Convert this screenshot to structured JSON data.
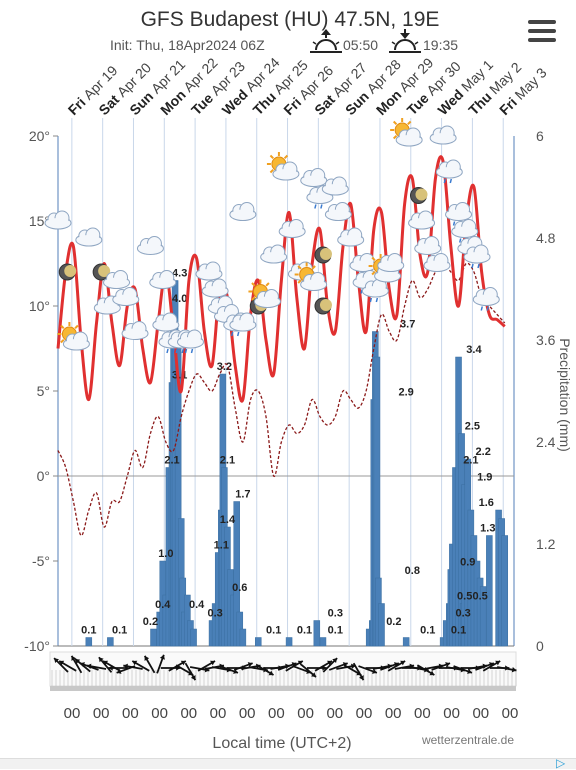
{
  "header": {
    "title": "GFS Budapest (HU) 47.5N, 19E",
    "init": "Init: Thu, 18Apr2024 06Z",
    "sunrise_time": "05:50",
    "sunset_time": "19:35",
    "sunrise_icon": "sunrise-icon",
    "sunset_icon": "sunset-icon",
    "menu_icon": "menu-icon"
  },
  "footer": {
    "xlabel": "Local time (UTC+2)",
    "credit": "wetterzentrale.de"
  },
  "chart_data": {
    "type": "line",
    "day_labels": [
      {
        "day": "Fri",
        "date": "Apr 19"
      },
      {
        "day": "Sat",
        "date": "Apr 20"
      },
      {
        "day": "Sun",
        "date": "Apr 21"
      },
      {
        "day": "Mon",
        "date": "Apr 22"
      },
      {
        "day": "Tue",
        "date": "Apr 23"
      },
      {
        "day": "Wed",
        "date": "Apr 24"
      },
      {
        "day": "Thu",
        "date": "Apr 25"
      },
      {
        "day": "Fri",
        "date": "Apr 26"
      },
      {
        "day": "Sat",
        "date": "Apr 27"
      },
      {
        "day": "Sun",
        "date": "Apr 28"
      },
      {
        "day": "Mon",
        "date": "Apr 29"
      },
      {
        "day": "Tue",
        "date": "Apr 30"
      },
      {
        "day": "Wed",
        "date": "May 1"
      },
      {
        "day": "Thu",
        "date": "May 2"
      },
      {
        "day": "Fri",
        "date": "May 3"
      }
    ],
    "x_tick_labels": [
      "00",
      "00",
      "00",
      "00",
      "00",
      "00",
      "00",
      "00",
      "00",
      "00",
      "00",
      "00",
      "00",
      "00",
      "00",
      "00"
    ],
    "left_axis": {
      "ylim": [
        -10,
        20
      ],
      "ticks": [
        "20°",
        "15°",
        "10°",
        "5°",
        "0°",
        "-5°",
        "-10°"
      ]
    },
    "right_axis": {
      "ylabel": "Precipitation (mm)",
      "ylim": [
        0,
        6
      ],
      "ticks": [
        "6",
        "4.8",
        "3.6",
        "2.4",
        "1.2",
        "0"
      ]
    },
    "colors": {
      "temperature": "#e03030",
      "dewpoint": "#8b1a1a",
      "bars": "#4a80b8",
      "frame": "#b0c4de"
    },
    "temperature": {
      "x": [
        0,
        0.25,
        0.5,
        0.75,
        1,
        1.25,
        1.5,
        1.75,
        2,
        2.25,
        2.5,
        2.75,
        3,
        3.25,
        3.5,
        3.75,
        4,
        4.25,
        4.5,
        4.75,
        5,
        5.25,
        5.5,
        5.75,
        6,
        6.25,
        6.5,
        6.75,
        7,
        7.25,
        7.5,
        7.75,
        8,
        8.25,
        8.5,
        8.75,
        9,
        9.25,
        9.5,
        9.75,
        10,
        10.25,
        10.5,
        10.75,
        11,
        11.25,
        11.5,
        11.75,
        12,
        12.25,
        12.5,
        12.75,
        13,
        13.25,
        13.5,
        13.75,
        14,
        14.25,
        14.5
      ],
      "y": [
        7.5,
        12,
        13.5,
        8,
        4.5,
        9,
        12.5,
        9,
        6.5,
        10,
        11,
        7.5,
        5.5,
        9,
        12,
        8.5,
        5,
        11.5,
        12.8,
        8.5,
        6.5,
        11,
        10.5,
        6.5,
        4.5,
        9.5,
        11.5,
        8,
        6,
        11.5,
        15.5,
        10.5,
        7.5,
        12.5,
        14.5,
        10,
        8.5,
        13.5,
        16,
        11.5,
        8.5,
        14.5,
        15.5,
        11,
        9.5,
        16,
        17.5,
        13,
        12,
        17.5,
        18.5,
        13.5,
        10,
        15,
        17,
        12,
        9.5,
        9.2,
        8.8
      ]
    },
    "dewpoint": {
      "x": [
        0,
        0.25,
        0.5,
        0.75,
        1,
        1.25,
        1.5,
        1.75,
        2,
        2.25,
        2.5,
        2.75,
        3,
        3.25,
        3.5,
        3.75,
        4,
        4.25,
        4.5,
        4.75,
        5,
        5.25,
        5.5,
        5.75,
        6,
        6.25,
        6.5,
        6.75,
        7,
        7.25,
        7.5,
        7.75,
        8,
        8.25,
        8.5,
        8.75,
        9,
        9.25,
        9.5,
        9.75,
        10,
        10.25,
        10.5,
        10.75,
        11,
        11.25,
        11.5,
        11.75,
        12,
        12.25,
        12.5,
        12.75,
        13,
        13.25,
        13.5,
        13.75,
        14,
        14.25,
        14.5
      ],
      "y": [
        1.5,
        0.5,
        -1.5,
        -3.5,
        -2,
        -1,
        -3,
        -1.5,
        -1.5,
        0,
        1.5,
        0.5,
        2.5,
        3.5,
        2,
        1.5,
        3.5,
        5,
        6,
        5.5,
        5,
        6,
        6.5,
        4,
        2,
        4.5,
        5,
        3.5,
        0,
        2,
        3,
        2.5,
        3,
        4.5,
        3.5,
        3,
        3.5,
        5,
        4.5,
        4,
        5,
        7.5,
        9.5,
        8.5,
        8,
        10,
        11.5,
        10.5,
        11,
        12,
        12.5,
        12,
        11.5,
        12.5,
        12,
        10.5,
        10,
        9.5,
        9
      ]
    },
    "precip_bars": {
      "x": [
        1.0,
        1.7,
        3.1,
        3.3,
        3.4,
        3.5,
        3.6,
        3.7,
        3.75,
        3.8,
        3.9,
        4.0,
        4.05,
        4.1,
        4.2,
        4.3,
        4.4,
        5.0,
        5.1,
        5.2,
        5.3,
        5.35,
        5.4,
        5.5,
        5.6,
        5.7,
        5.8,
        5.9,
        6.0,
        6.5,
        7.5,
        8.4,
        8.6,
        10.1,
        10.2,
        10.25,
        10.3,
        10.35,
        10.4,
        10.5,
        11.3,
        12.5,
        12.6,
        12.7,
        12.75,
        12.8,
        12.9,
        13.0,
        13.1,
        13.15,
        13.2,
        13.3,
        13.4,
        13.5,
        13.6,
        13.7,
        13.8,
        14.0,
        14.3,
        14.4,
        14.5
      ],
      "y": [
        0.1,
        0.1,
        0.2,
        0.4,
        1.0,
        0.6,
        2.1,
        3.1,
        4.0,
        4.3,
        3.5,
        1.5,
        0.8,
        0.4,
        0.6,
        0.3,
        0.2,
        0.3,
        0.5,
        1.1,
        1.6,
        3.2,
        2.1,
        1.4,
        0.9,
        0.6,
        1.7,
        0.4,
        0.2,
        0.1,
        0.1,
        0.3,
        0.1,
        0.2,
        0.3,
        2.9,
        3.7,
        3.4,
        0.8,
        0.5,
        0.1,
        0.1,
        0.3,
        0.5,
        0.9,
        1.2,
        2.1,
        3.4,
        2.5,
        0.5,
        1.9,
        2.2,
        1.6,
        1.3,
        1.0,
        0.8,
        0.7,
        1.3,
        1.6,
        1.5,
        1.3
      ]
    },
    "precip_labels": [
      {
        "x": 1.0,
        "value": "0.1"
      },
      {
        "x": 2.0,
        "value": "0.1"
      },
      {
        "x": 3.0,
        "value": "0.2"
      },
      {
        "x": 3.4,
        "value": "0.4"
      },
      {
        "x": 3.5,
        "value": "1.0"
      },
      {
        "x": 3.7,
        "value": "2.1"
      },
      {
        "x": 3.95,
        "value": "3.1"
      },
      {
        "x": 3.95,
        "value": "4.0"
      },
      {
        "x": 3.95,
        "value": "4.3"
      },
      {
        "x": 4.5,
        "value": "0.4"
      },
      {
        "x": 5.1,
        "value": "0.3"
      },
      {
        "x": 5.3,
        "value": "1.1"
      },
      {
        "x": 5.5,
        "value": "1.4"
      },
      {
        "x": 5.5,
        "value": "2.1"
      },
      {
        "x": 5.4,
        "value": "3.2"
      },
      {
        "x": 6.0,
        "value": "1.7"
      },
      {
        "x": 5.9,
        "value": "0.6"
      },
      {
        "x": 7.0,
        "value": "0.1"
      },
      {
        "x": 8.0,
        "value": "0.1"
      },
      {
        "x": 9.0,
        "value": "0.3"
      },
      {
        "x": 9.0,
        "value": "0.1"
      },
      {
        "x": 10.9,
        "value": "0.2"
      },
      {
        "x": 11.3,
        "value": "2.9"
      },
      {
        "x": 11.35,
        "value": "3.7"
      },
      {
        "x": 11.5,
        "value": "0.8"
      },
      {
        "x": 12.0,
        "value": "0.1"
      },
      {
        "x": 13.0,
        "value": "0.1"
      },
      {
        "x": 13.15,
        "value": "0.3"
      },
      {
        "x": 13.2,
        "value": "0.5"
      },
      {
        "x": 13.3,
        "value": "0.9"
      },
      {
        "x": 13.4,
        "value": "2.1"
      },
      {
        "x": 13.45,
        "value": "2.5"
      },
      {
        "x": 13.5,
        "value": "3.4"
      },
      {
        "x": 13.7,
        "value": "0.5"
      },
      {
        "x": 13.8,
        "value": "2.2"
      },
      {
        "x": 13.85,
        "value": "1.9"
      },
      {
        "x": 13.9,
        "value": "1.6"
      },
      {
        "x": 13.95,
        "value": "1.3"
      }
    ],
    "weather_icons": [
      {
        "x": 0.0,
        "t": 15.0,
        "icon": "cloud-icon"
      },
      {
        "x": 0.3,
        "t": 12.0,
        "icon": "moon-icon"
      },
      {
        "x": 0.5,
        "t": 8.0,
        "icon": "sun-cloud-icon"
      },
      {
        "x": 1.0,
        "t": 14.0,
        "icon": "cloud-icon"
      },
      {
        "x": 1.4,
        "t": 12.0,
        "icon": "moon-icon"
      },
      {
        "x": 1.6,
        "t": 10.0,
        "icon": "cloud-icon"
      },
      {
        "x": 1.9,
        "t": 11.5,
        "icon": "cloud-icon"
      },
      {
        "x": 2.2,
        "t": 10.5,
        "icon": "cloud-icon"
      },
      {
        "x": 2.5,
        "t": 8.5,
        "icon": "cloud-icon"
      },
      {
        "x": 3.0,
        "t": 13.5,
        "icon": "cloud-icon"
      },
      {
        "x": 3.4,
        "t": 11.5,
        "icon": "cloud-icon"
      },
      {
        "x": 3.5,
        "t": 9.0,
        "icon": "cloud-icon"
      },
      {
        "x": 3.7,
        "t": 8.0,
        "icon": "rain-cloud-icon"
      },
      {
        "x": 4.0,
        "t": 8.0,
        "icon": "rain-cloud-icon"
      },
      {
        "x": 4.3,
        "t": 8.0,
        "icon": "rain-cloud-icon"
      },
      {
        "x": 4.9,
        "t": 12.0,
        "icon": "cloud-icon"
      },
      {
        "x": 5.1,
        "t": 11.0,
        "icon": "cloud-icon"
      },
      {
        "x": 5.3,
        "t": 10.0,
        "icon": "rain-cloud-icon"
      },
      {
        "x": 5.5,
        "t": 9.5,
        "icon": "cloud-icon"
      },
      {
        "x": 5.8,
        "t": 9.0,
        "icon": "rain-cloud-icon"
      },
      {
        "x": 6.0,
        "t": 9.0,
        "icon": "cloud-icon"
      },
      {
        "x": 6.5,
        "t": 10.0,
        "icon": "moon-icon"
      },
      {
        "x": 6.7,
        "t": 10.5,
        "icon": "sun-cloud-icon"
      },
      {
        "x": 6.0,
        "t": 15.5,
        "icon": "cloud-icon"
      },
      {
        "x": 7.0,
        "t": 13.0,
        "icon": "cloud-icon"
      },
      {
        "x": 7.3,
        "t": 18.0,
        "icon": "sun-cloud-icon"
      },
      {
        "x": 7.6,
        "t": 14.5,
        "icon": "cloud-icon"
      },
      {
        "x": 7.9,
        "t": 12.0,
        "icon": "cloud-icon"
      },
      {
        "x": 8.2,
        "t": 11.5,
        "icon": "sun-cloud-icon"
      },
      {
        "x": 8.3,
        "t": 17.5,
        "icon": "cloud-icon"
      },
      {
        "x": 8.5,
        "t": 16.5,
        "icon": "rain-cloud-icon"
      },
      {
        "x": 8.6,
        "t": 13.0,
        "icon": "moon-icon"
      },
      {
        "x": 8.6,
        "t": 10.0,
        "icon": "moon-icon"
      },
      {
        "x": 9.0,
        "t": 17.0,
        "icon": "cloud-icon"
      },
      {
        "x": 9.1,
        "t": 15.5,
        "icon": "cloud-icon"
      },
      {
        "x": 9.5,
        "t": 14.0,
        "icon": "cloud-icon"
      },
      {
        "x": 9.9,
        "t": 12.5,
        "icon": "cloud-icon"
      },
      {
        "x": 10.0,
        "t": 11.5,
        "icon": "rain-cloud-icon"
      },
      {
        "x": 10.3,
        "t": 11.0,
        "icon": "rain-cloud-icon"
      },
      {
        "x": 10.6,
        "t": 12.0,
        "icon": "sun-cloud-icon"
      },
      {
        "x": 10.8,
        "t": 12.5,
        "icon": "cloud-icon"
      },
      {
        "x": 11.3,
        "t": 20.0,
        "icon": "sun-cloud-icon"
      },
      {
        "x": 11.7,
        "t": 16.5,
        "icon": "moon-icon"
      },
      {
        "x": 11.8,
        "t": 15.0,
        "icon": "cloud-icon"
      },
      {
        "x": 12.0,
        "t": 13.5,
        "icon": "cloud-icon"
      },
      {
        "x": 12.3,
        "t": 12.5,
        "icon": "cloud-icon"
      },
      {
        "x": 12.5,
        "t": 20.0,
        "icon": "cloud-icon"
      },
      {
        "x": 12.7,
        "t": 18.0,
        "icon": "rain-cloud-icon"
      },
      {
        "x": 13.0,
        "t": 15.5,
        "icon": "rain-cloud-icon"
      },
      {
        "x": 13.2,
        "t": 14.5,
        "icon": "rain-cloud-icon"
      },
      {
        "x": 13.4,
        "t": 13.5,
        "icon": "rain-cloud-icon"
      },
      {
        "x": 13.6,
        "t": 13.0,
        "icon": "rain-cloud-icon"
      },
      {
        "x": 13.9,
        "t": 10.5,
        "icon": "rain-cloud-icon"
      }
    ],
    "wind_direction_deg": [
      315,
      300,
      330,
      310,
      290,
      280,
      320,
      300,
      270,
      250,
      280,
      300,
      330,
      20,
      90,
      60,
      120,
      150,
      100,
      60,
      80,
      100,
      110,
      90,
      70,
      80,
      100,
      120,
      90,
      80,
      70,
      60,
      110,
      130,
      90,
      60,
      45,
      70,
      80,
      120,
      150,
      110,
      90,
      80,
      70,
      60,
      80,
      90,
      100,
      120,
      80,
      70,
      90,
      100,
      110,
      90,
      80,
      70,
      60,
      90,
      100
    ],
    "grid": true
  }
}
